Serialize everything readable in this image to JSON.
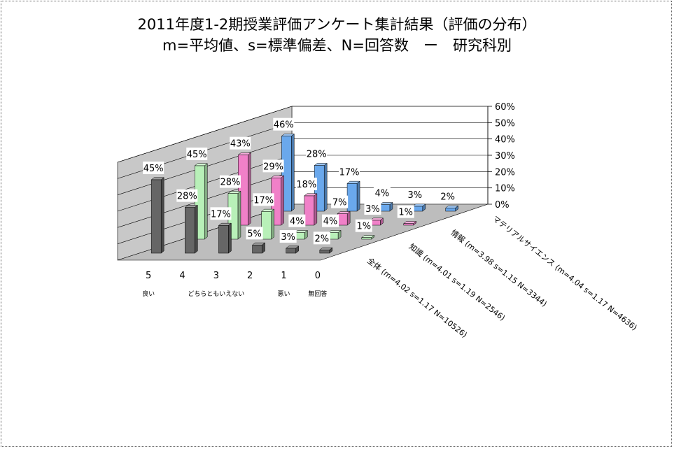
{
  "chart_data": {
    "type": "bar",
    "title": "2011年度1-2期授業評価アンケート集計結果（評価の分布）",
    "subtitle": "m=平均値、s=標準偏差、N=回答数　ー　研究科別",
    "categories": [
      "5",
      "4",
      "3",
      "2",
      "1",
      "0"
    ],
    "category_sublabels": [
      "良い",
      "",
      "どちらともいえない",
      "",
      "悪い",
      "無回答"
    ],
    "yticks": [
      "0%",
      "10%",
      "20%",
      "30%",
      "40%",
      "50%",
      "60%"
    ],
    "ylim": [
      0,
      60
    ],
    "series": [
      {
        "name": "全体 (m=4.02 s=1.17 N=10526)",
        "values": [
          45,
          28,
          17,
          5,
          3,
          2
        ],
        "labels": [
          "45%",
          "28%",
          "17%",
          "5%",
          "3%",
          "2%"
        ],
        "color": "#666666"
      },
      {
        "name": "知識 (m=4.01 s=1.19 N=2546)",
        "values": [
          45,
          28,
          17,
          4,
          4,
          1
        ],
        "labels": [
          "45%",
          "28%",
          "17%",
          "4%",
          "4%",
          "1%"
        ],
        "color": "#b8f0b8"
      },
      {
        "name": "情報 (m=3.98 s=1.15 N=3344)",
        "values": [
          43,
          29,
          18,
          7,
          3,
          1
        ],
        "labels": [
          "43%",
          "29%",
          "18%",
          "7%",
          "3%",
          "1%"
        ],
        "color": "#f080c8"
      },
      {
        "name": "マテリアルサイエンス (m=4.04 s=1.17 N=4636)",
        "values": [
          46,
          28,
          17,
          4,
          3,
          2
        ],
        "labels": [
          "46%",
          "28%",
          "17%",
          "4%",
          "3%",
          "2%"
        ],
        "color": "#6aa8ec"
      }
    ],
    "grid": true
  }
}
